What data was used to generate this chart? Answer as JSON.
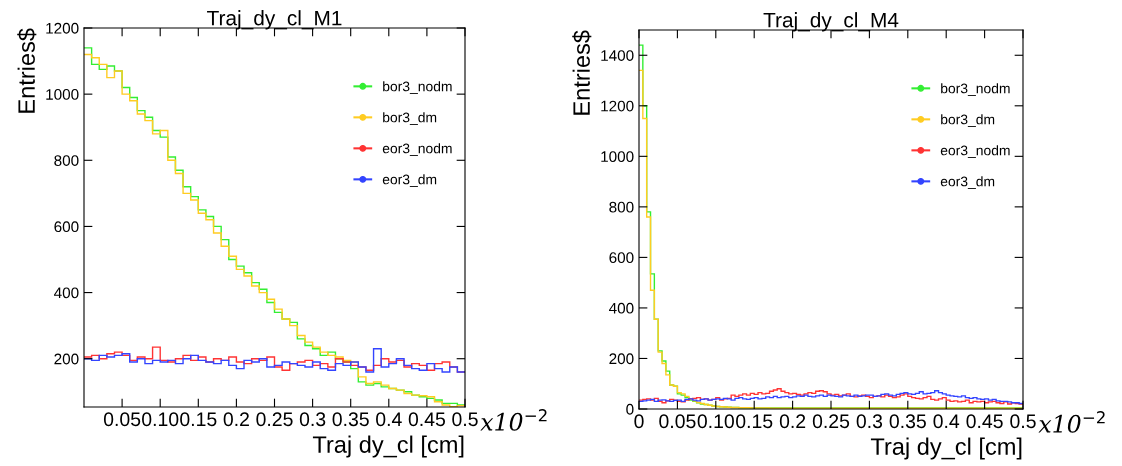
{
  "chart_data": [
    {
      "type": "histogram",
      "title": "Traj_dy_cl_M1",
      "xlabel": "Traj dy_cl [cm]",
      "ylabel": "Entries$",
      "annotations": [
        "x10$^{−2}$"
      ],
      "xlim": [
        0,
        0.5
      ],
      "ylim": [
        54,
        1200
      ],
      "xticks": [
        0.05,
        {
          "value": 0.1,
          "label": "0.10"
        },
        0.15,
        0.2,
        0.25,
        0.3,
        0.35,
        0.4,
        0.45,
        0.5
      ],
      "yticks": [
        200,
        400,
        600,
        800,
        1000,
        1200
      ],
      "grid": false,
      "legend": "right",
      "marker": "circle",
      "bins": [
        0,
        0.01,
        0.02,
        0.03,
        0.04,
        0.05,
        0.06,
        0.07,
        0.08,
        0.09,
        0.1,
        0.11,
        0.12,
        0.13,
        0.14,
        0.15,
        0.16,
        0.17,
        0.18,
        0.19,
        0.2,
        0.21,
        0.22,
        0.23,
        0.24,
        0.25,
        0.26,
        0.27,
        0.28,
        0.29,
        0.3,
        0.31,
        0.32,
        0.33,
        0.34,
        0.35,
        0.36,
        0.37,
        0.38,
        0.39,
        0.4,
        0.41,
        0.42,
        0.43,
        0.44,
        0.45,
        0.46,
        0.47,
        0.48,
        0.49,
        0.5
      ],
      "series": [
        {
          "name": "bor3_nodm",
          "color": "#33ee33",
          "values": [
            1140,
            1090,
            1075,
            1085,
            1070,
            1020,
            990,
            950,
            930,
            890,
            870,
            810,
            770,
            720,
            690,
            650,
            630,
            600,
            560,
            500,
            480,
            460,
            430,
            410,
            370,
            340,
            320,
            310,
            260,
            240,
            230,
            210,
            220,
            200,
            190,
            170,
            130,
            120,
            125,
            115,
            110,
            105,
            100,
            90,
            85,
            80,
            75,
            65,
            65,
            60
          ]
        },
        {
          "name": "bor3_dm",
          "color": "#ffcc22",
          "values": [
            1120,
            1110,
            1090,
            1050,
            1070,
            1000,
            980,
            940,
            920,
            880,
            890,
            800,
            760,
            700,
            680,
            640,
            620,
            580,
            540,
            510,
            470,
            450,
            420,
            400,
            380,
            350,
            320,
            300,
            270,
            250,
            235,
            220,
            210,
            205,
            195,
            190,
            145,
            125,
            130,
            120,
            110,
            105,
            95,
            90,
            88,
            85,
            70,
            60,
            55,
            58
          ]
        },
        {
          "name": "eor3_nodm",
          "color": "#ff3333",
          "values": [
            205,
            210,
            200,
            215,
            220,
            210,
            195,
            205,
            200,
            235,
            195,
            190,
            200,
            210,
            195,
            205,
            190,
            200,
            195,
            205,
            190,
            185,
            200,
            195,
            205,
            175,
            165,
            185,
            190,
            195,
            180,
            185,
            175,
            200,
            190,
            180,
            175,
            165,
            180,
            200,
            190,
            195,
            175,
            185,
            180,
            165,
            185,
            190,
            175,
            160
          ]
        },
        {
          "name": "eor3_dm",
          "color": "#3344ff",
          "values": [
            200,
            195,
            210,
            205,
            210,
            215,
            190,
            200,
            185,
            195,
            190,
            195,
            185,
            200,
            210,
            195,
            190,
            185,
            195,
            180,
            170,
            195,
            190,
            200,
            175,
            180,
            190,
            185,
            180,
            175,
            190,
            170,
            165,
            185,
            180,
            190,
            175,
            160,
            230,
            175,
            185,
            200,
            180,
            170,
            165,
            185,
            170,
            160,
            175,
            160
          ]
        }
      ]
    },
    {
      "type": "histogram",
      "title": "Traj_dy_cl_M4",
      "xlabel": "Traj dy_cl [cm]",
      "ylabel": "Entries$",
      "annotations": [
        "x10$^{−2}$"
      ],
      "xlim": [
        0,
        0.5
      ],
      "ylim": [
        0,
        1500
      ],
      "xticks": [
        0,
        0.05,
        {
          "value": 0.1,
          "label": "0.10"
        },
        0.15,
        0.2,
        0.25,
        0.3,
        0.35,
        0.4,
        0.45,
        0.5
      ],
      "yticks": [
        0,
        200,
        400,
        600,
        800,
        1000,
        1200,
        1400
      ],
      "grid": false,
      "legend": "right",
      "marker": "circle",
      "bins": [
        0,
        0.005,
        0.01,
        0.015,
        0.02,
        0.025,
        0.03,
        0.035,
        0.04,
        0.045,
        0.05,
        0.055,
        0.06,
        0.065,
        0.07,
        0.075,
        0.08,
        0.085,
        0.09,
        0.095,
        0.1,
        0.105,
        0.11,
        0.115,
        0.12,
        0.125,
        0.13,
        0.135,
        0.14,
        0.145,
        0.15,
        0.155,
        0.16,
        0.165,
        0.17,
        0.175,
        0.18,
        0.185,
        0.19,
        0.195,
        0.2,
        0.205,
        0.21,
        0.215,
        0.22,
        0.225,
        0.23,
        0.235,
        0.24,
        0.245,
        0.25,
        0.255,
        0.26,
        0.265,
        0.27,
        0.275,
        0.28,
        0.285,
        0.29,
        0.295,
        0.3,
        0.305,
        0.31,
        0.315,
        0.32,
        0.325,
        0.33,
        0.335,
        0.34,
        0.345,
        0.35,
        0.355,
        0.36,
        0.365,
        0.37,
        0.375,
        0.38,
        0.385,
        0.39,
        0.395,
        0.4,
        0.405,
        0.41,
        0.415,
        0.42,
        0.425,
        0.43,
        0.435,
        0.44,
        0.445,
        0.45,
        0.455,
        0.46,
        0.465,
        0.47,
        0.475,
        0.48,
        0.485,
        0.49,
        0.495,
        0.5
      ],
      "series": [
        {
          "name": "bor3_nodm",
          "color": "#33ee33",
          "values": [
            1440,
            1200,
            780,
            535,
            355,
            230,
            190,
            150,
            95,
            90,
            60,
            55,
            45,
            35,
            30,
            25,
            20,
            18,
            15,
            12,
            10,
            9,
            8,
            7,
            6,
            6,
            5,
            5,
            5,
            4,
            4,
            4,
            4,
            4,
            4,
            4,
            4,
            4,
            4,
            4,
            4,
            4,
            4,
            4,
            4,
            4,
            4,
            4,
            4,
            4,
            4,
            4,
            4,
            4,
            4,
            4,
            4,
            4,
            4,
            4,
            4,
            4,
            4,
            4,
            4,
            4,
            4,
            4,
            4,
            4,
            4,
            4,
            4,
            4,
            4,
            4,
            4,
            4,
            4,
            4,
            4,
            4,
            4,
            4,
            4,
            4,
            4,
            4,
            4,
            4,
            4,
            4,
            4,
            4,
            4,
            4,
            4,
            4,
            4,
            4
          ]
        },
        {
          "name": "bor3_dm",
          "color": "#ffcc22",
          "values": [
            1340,
            1150,
            760,
            470,
            355,
            225,
            180,
            135,
            95,
            90,
            65,
            60,
            50,
            40,
            32,
            26,
            22,
            18,
            15,
            12,
            10,
            9,
            8,
            7,
            6,
            6,
            5,
            5,
            5,
            4,
            4,
            4,
            4,
            4,
            3,
            3,
            3,
            3,
            3,
            3,
            3,
            3,
            3,
            3,
            3,
            3,
            3,
            3,
            3,
            3,
            3,
            3,
            3,
            3,
            3,
            3,
            3,
            3,
            3,
            3,
            3,
            3,
            3,
            3,
            3,
            3,
            3,
            3,
            3,
            3,
            3,
            3,
            3,
            3,
            3,
            3,
            3,
            3,
            3,
            3,
            3,
            3,
            3,
            3,
            3,
            3,
            3,
            3,
            3,
            3,
            3,
            3,
            3,
            3,
            3,
            3,
            3,
            3,
            3,
            3
          ]
        },
        {
          "name": "eor3_nodm",
          "color": "#ff3333",
          "values": [
            35,
            38,
            40,
            35,
            42,
            30,
            25,
            32,
            38,
            35,
            30,
            28,
            35,
            40,
            42,
            45,
            38,
            40,
            35,
            38,
            45,
            35,
            40,
            42,
            55,
            50,
            55,
            60,
            55,
            62,
            58,
            65,
            60,
            62,
            70,
            75,
            80,
            70,
            65,
            60,
            62,
            58,
            55,
            60,
            65,
            62,
            70,
            72,
            68,
            60,
            55,
            58,
            52,
            55,
            60,
            50,
            48,
            52,
            55,
            50,
            45,
            50,
            52,
            48,
            55,
            50,
            45,
            48,
            55,
            60,
            50,
            45,
            42,
            40,
            45,
            50,
            38,
            35,
            40,
            45,
            35,
            30,
            32,
            28,
            30,
            35,
            25,
            30,
            28,
            30,
            25,
            28,
            30,
            25,
            22,
            28,
            20,
            25,
            22,
            20
          ]
        },
        {
          "name": "eor3_dm",
          "color": "#3344ff",
          "values": [
            30,
            32,
            35,
            38,
            30,
            35,
            36,
            32,
            30,
            34,
            35,
            30,
            38,
            40,
            35,
            32,
            38,
            40,
            35,
            38,
            40,
            38,
            42,
            40,
            35,
            42,
            45,
            40,
            38,
            42,
            45,
            40,
            42,
            48,
            45,
            50,
            45,
            48,
            50,
            45,
            48,
            52,
            50,
            55,
            50,
            48,
            52,
            55,
            50,
            55,
            52,
            50,
            48,
            55,
            52,
            50,
            55,
            50,
            52,
            55,
            55,
            50,
            52,
            58,
            60,
            55,
            52,
            58,
            62,
            65,
            60,
            58,
            62,
            68,
            60,
            62,
            65,
            72,
            65,
            60,
            55,
            52,
            50,
            48,
            52,
            45,
            42,
            45,
            40,
            38,
            40,
            35,
            38,
            32,
            30,
            30,
            28,
            25,
            25,
            22
          ]
        }
      ]
    }
  ]
}
